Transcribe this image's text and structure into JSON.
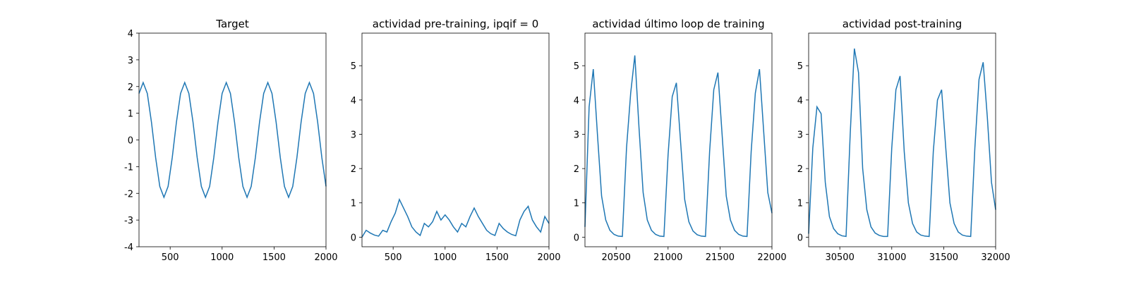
{
  "chart_data": [
    {
      "type": "line",
      "title": "Target",
      "x": [
        200,
        240,
        280,
        320,
        360,
        400,
        440,
        480,
        520,
        560,
        600,
        640,
        680,
        720,
        760,
        800,
        840,
        880,
        920,
        960,
        1000,
        1040,
        1080,
        1120,
        1160,
        1200,
        1240,
        1280,
        1320,
        1360,
        1400,
        1440,
        1480,
        1520,
        1560,
        1600,
        1640,
        1680,
        1720,
        1760,
        1800,
        1840,
        1880,
        1920,
        1960,
        2000
      ],
      "series": [
        {
          "color": "#1f77b4",
          "values": [
            1.74,
            2.15,
            1.74,
            0.66,
            -0.66,
            -1.74,
            -2.15,
            -1.74,
            -0.66,
            0.66,
            1.74,
            2.15,
            1.74,
            0.66,
            -0.66,
            -1.74,
            -2.15,
            -1.74,
            -0.66,
            0.66,
            1.74,
            2.15,
            1.74,
            0.66,
            -0.66,
            -1.74,
            -2.15,
            -1.74,
            -0.66,
            0.66,
            1.74,
            2.15,
            1.74,
            0.66,
            -0.66,
            -1.74,
            -2.15,
            -1.74,
            -0.66,
            0.66,
            1.74,
            2.15,
            1.74,
            0.66,
            -0.66,
            -1.74
          ]
        }
      ],
      "xlim": [
        200,
        2000
      ],
      "xticks": [
        500,
        1000,
        1500,
        2000
      ],
      "ylim": [
        -4,
        4
      ],
      "yticks": [
        -4,
        -3,
        -2,
        -1,
        0,
        1,
        2,
        3,
        4
      ]
    },
    {
      "type": "line",
      "title": "actividad pre-training, ipqif = 0",
      "x": [
        200,
        240,
        280,
        320,
        360,
        400,
        440,
        480,
        520,
        560,
        600,
        640,
        680,
        720,
        760,
        800,
        840,
        880,
        920,
        960,
        1000,
        1040,
        1080,
        1120,
        1160,
        1200,
        1240,
        1280,
        1320,
        1360,
        1400,
        1440,
        1480,
        1520,
        1560,
        1600,
        1640,
        1680,
        1720,
        1760,
        1800,
        1840,
        1880,
        1920,
        1960,
        2000
      ],
      "series": [
        {
          "color": "#1f77b4",
          "values": [
            0.0,
            0.2,
            0.12,
            0.06,
            0.03,
            0.2,
            0.15,
            0.45,
            0.7,
            1.1,
            0.85,
            0.6,
            0.3,
            0.15,
            0.05,
            0.4,
            0.3,
            0.45,
            0.75,
            0.5,
            0.65,
            0.5,
            0.3,
            0.15,
            0.4,
            0.3,
            0.6,
            0.85,
            0.6,
            0.4,
            0.2,
            0.1,
            0.05,
            0.4,
            0.25,
            0.15,
            0.08,
            0.04,
            0.5,
            0.75,
            0.9,
            0.5,
            0.3,
            0.15,
            0.6,
            0.4
          ]
        }
      ],
      "xlim": [
        200,
        2000
      ],
      "xticks": [
        500,
        1000,
        1500,
        2000
      ],
      "ylim": [
        -0.28,
        5.95
      ],
      "yticks": [
        0,
        1,
        2,
        3,
        4,
        5
      ]
    },
    {
      "type": "line",
      "title": "actividad último loop de training",
      "x": [
        20200,
        20240,
        20280,
        20320,
        20360,
        20400,
        20440,
        20480,
        20520,
        20560,
        20600,
        20640,
        20680,
        20720,
        20760,
        20800,
        20840,
        20880,
        20920,
        20960,
        21000,
        21040,
        21080,
        21120,
        21160,
        21200,
        21240,
        21280,
        21320,
        21360,
        21400,
        21440,
        21480,
        21520,
        21560,
        21600,
        21640,
        21680,
        21720,
        21760,
        21800,
        21840,
        21880,
        21920,
        21960,
        22000
      ],
      "series": [
        {
          "color": "#1f77b4",
          "values": [
            0.3,
            3.8,
            4.9,
            3.0,
            1.2,
            0.5,
            0.2,
            0.08,
            0.03,
            0.02,
            2.6,
            4.2,
            5.3,
            3.2,
            1.3,
            0.5,
            0.2,
            0.08,
            0.03,
            0.02,
            2.4,
            4.1,
            4.5,
            2.8,
            1.1,
            0.45,
            0.18,
            0.07,
            0.03,
            0.02,
            2.5,
            4.3,
            4.8,
            3.0,
            1.2,
            0.5,
            0.2,
            0.08,
            0.03,
            0.02,
            2.5,
            4.2,
            4.9,
            3.1,
            1.3,
            0.7
          ]
        }
      ],
      "xlim": [
        20200,
        22000
      ],
      "xticks": [
        20500,
        21000,
        21500,
        22000
      ],
      "ylim": [
        -0.28,
        5.95
      ],
      "yticks": [
        0,
        1,
        2,
        3,
        4,
        5
      ]
    },
    {
      "type": "line",
      "title": "actividad post-training",
      "x": [
        30200,
        30240,
        30280,
        30320,
        30360,
        30400,
        30440,
        30480,
        30520,
        30560,
        30600,
        30640,
        30680,
        30720,
        30760,
        30800,
        30840,
        30880,
        30920,
        30960,
        31000,
        31040,
        31080,
        31120,
        31160,
        31200,
        31240,
        31280,
        31320,
        31360,
        31400,
        31440,
        31480,
        31520,
        31560,
        31600,
        31640,
        31680,
        31720,
        31760,
        31800,
        31840,
        31880,
        31920,
        31960,
        32000
      ],
      "series": [
        {
          "color": "#1f77b4",
          "values": [
            0.1,
            2.6,
            3.8,
            3.6,
            1.6,
            0.6,
            0.25,
            0.1,
            0.04,
            0.02,
            3.0,
            5.5,
            4.8,
            2.0,
            0.8,
            0.3,
            0.12,
            0.05,
            0.02,
            0.02,
            2.6,
            4.3,
            4.7,
            2.5,
            1.0,
            0.4,
            0.15,
            0.06,
            0.03,
            0.02,
            2.5,
            4.0,
            4.3,
            2.6,
            1.0,
            0.4,
            0.15,
            0.06,
            0.03,
            0.02,
            2.6,
            4.6,
            5.1,
            3.5,
            1.6,
            0.8
          ]
        }
      ],
      "xlim": [
        30200,
        32000
      ],
      "xticks": [
        30500,
        31000,
        31500,
        32000
      ],
      "ylim": [
        -0.28,
        5.95
      ],
      "yticks": [
        0,
        1,
        2,
        3,
        4,
        5
      ]
    }
  ]
}
